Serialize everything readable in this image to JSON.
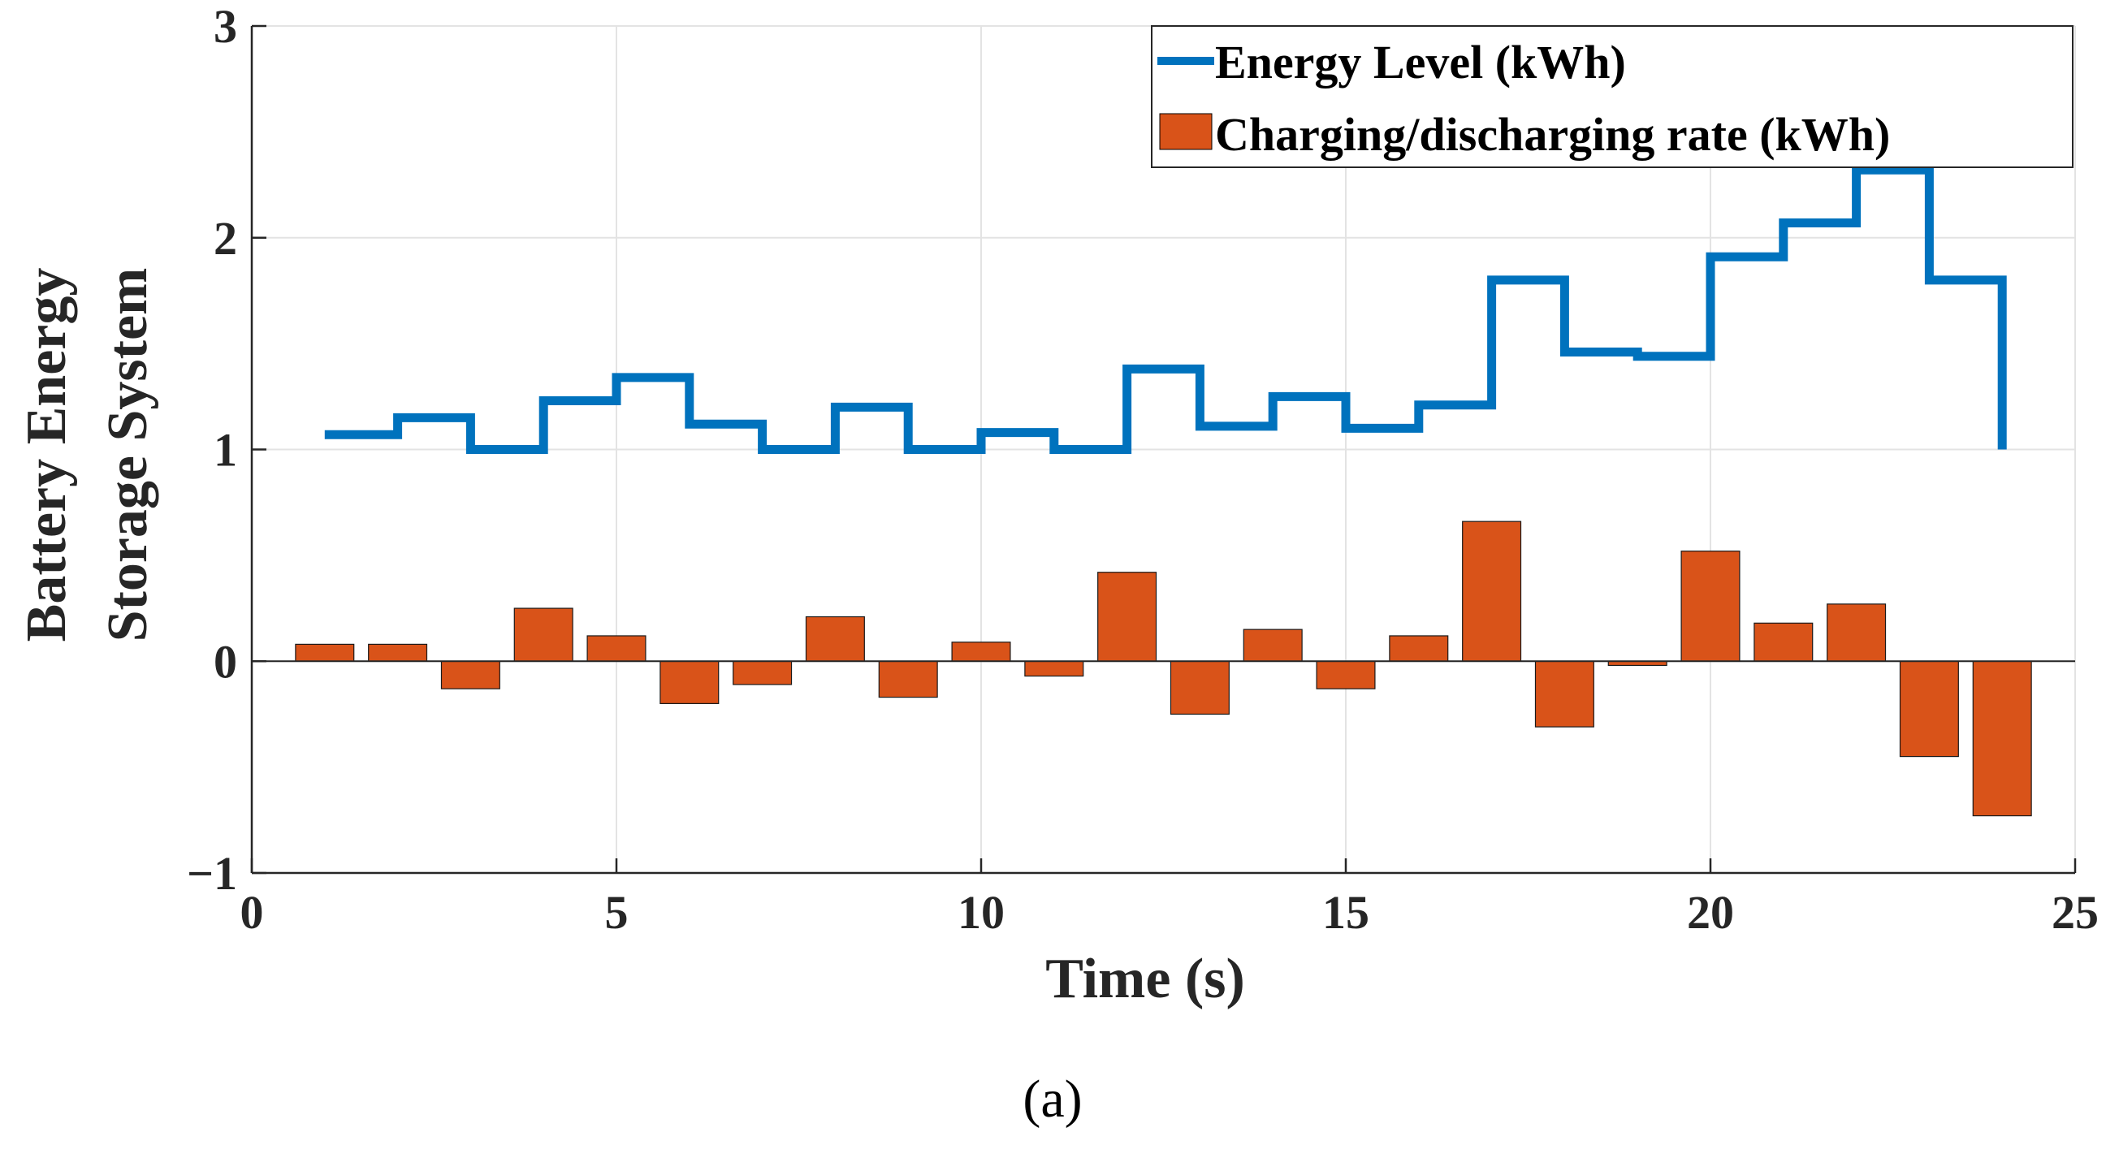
{
  "chart_data": {
    "type": "bar",
    "title": "",
    "xlabel": "Time (s)",
    "ylabel_lines": [
      "Battery Energy",
      "Storage System"
    ],
    "xlim": [
      0,
      25
    ],
    "ylim": [
      -1,
      3
    ],
    "xticks": [
      0,
      5,
      10,
      15,
      20,
      25
    ],
    "yticks": [
      -1,
      0,
      1,
      2,
      3
    ],
    "xtick_labels": [
      "0",
      "5",
      "10",
      "15",
      "20",
      "25"
    ],
    "ytick_labels": [
      "−1",
      "0",
      "1",
      "2",
      "3"
    ],
    "grid": true,
    "legend_position": "top-right",
    "series": [
      {
        "name": "Energy Level (kWh)",
        "style": "stairs",
        "color": "#0072BD",
        "x": [
          1,
          2,
          3,
          4,
          5,
          6,
          7,
          8,
          9,
          10,
          11,
          12,
          13,
          14,
          15,
          16,
          17,
          18,
          19,
          20,
          21,
          22,
          23,
          24
        ],
        "values": [
          1.07,
          1.15,
          1.0,
          1.23,
          1.34,
          1.12,
          1.0,
          1.2,
          1.0,
          1.08,
          1.0,
          1.38,
          1.11,
          1.25,
          1.1,
          1.21,
          1.8,
          1.46,
          1.44,
          1.91,
          2.07,
          2.32,
          1.8,
          1.0
        ]
      },
      {
        "name": "Charging/discharging rate (kWh)",
        "style": "bar",
        "color": "#D95319",
        "x": [
          1,
          2,
          3,
          4,
          5,
          6,
          7,
          8,
          9,
          10,
          11,
          12,
          13,
          14,
          15,
          16,
          17,
          18,
          19,
          20,
          21,
          22,
          23,
          24
        ],
        "values": [
          0.08,
          0.08,
          -0.13,
          0.25,
          0.12,
          -0.2,
          -0.11,
          0.21,
          -0.17,
          0.09,
          -0.07,
          0.42,
          -0.25,
          0.15,
          -0.13,
          0.12,
          0.66,
          -0.31,
          -0.02,
          0.52,
          0.18,
          0.27,
          -0.45,
          -0.73
        ]
      }
    ]
  },
  "caption": "(a)"
}
